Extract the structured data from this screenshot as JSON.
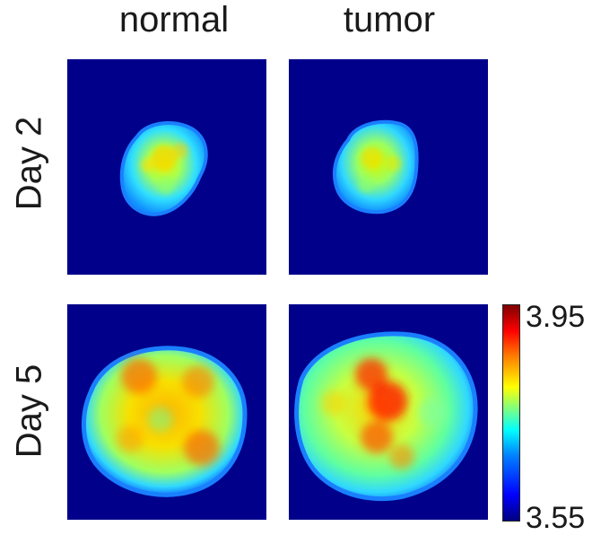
{
  "columns": {
    "left": "normal",
    "right": "tumor"
  },
  "rows": {
    "top": "Day 2",
    "bottom": "Day 5"
  },
  "colorbar": {
    "max_label": "3.95",
    "min_label": "3.55",
    "colormap": "jet",
    "background_color": "#00008b"
  }
}
